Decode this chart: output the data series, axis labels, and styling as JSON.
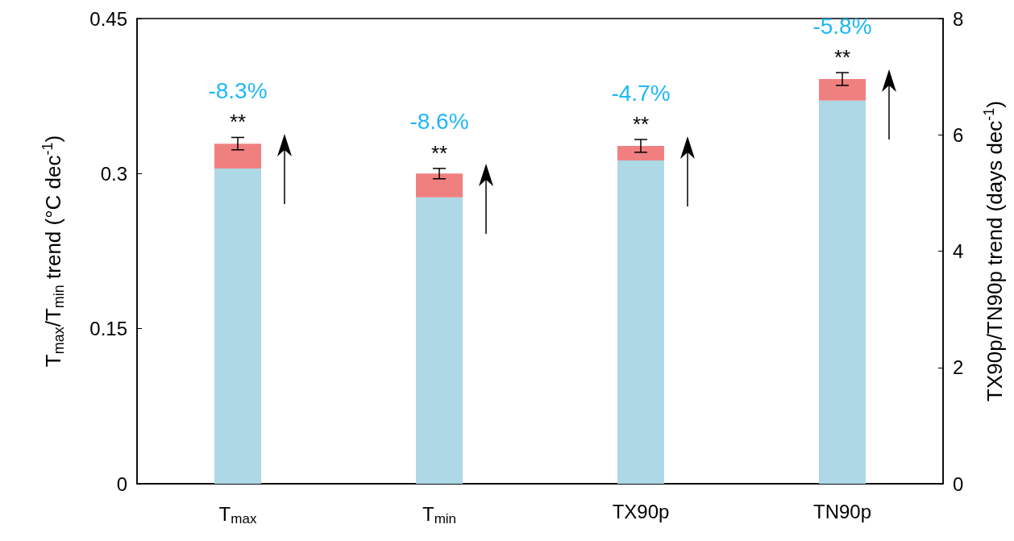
{
  "chart_data": {
    "type": "bar",
    "stacked": true,
    "categories": [
      "T$_{max}$",
      "T$_{min}$",
      "TX90p",
      "TN90p"
    ],
    "ylabel": "T$_{max}$/T$_{min}$ trend (°C dec$^{-1}$)",
    "y2label": "TX90p/TN90p trend (days dec$^{-1}$)",
    "ylim": [
      0,
      0.45
    ],
    "yticks": [
      0,
      0.15,
      0.3,
      0.45
    ],
    "y2lim": [
      0,
      8
    ],
    "y2ticks": [
      0,
      2,
      4,
      6,
      8
    ],
    "series": [
      {
        "color": "#add8e6",
        "values": [
          0.305,
          0.277,
          null,
          null
        ]
      },
      {
        "color": "#f08080",
        "values": [
          0.024,
          0.023,
          null,
          null
        ],
        "errors": [
          0.006,
          0.005,
          null,
          null
        ]
      },
      {
        "color": "#add8e6",
        "axis": "y2",
        "values": [
          null,
          null,
          5.56,
          6.59
        ]
      },
      {
        "color": "#f08080",
        "axis": "y2",
        "values": [
          null,
          null,
          0.25,
          0.37
        ],
        "errors": [
          null,
          null,
          0.11,
          0.11
        ]
      }
    ],
    "annotations": [
      "-8.3%",
      "**",
      "-8.6%",
      "**",
      "-4.7%",
      "**",
      "-5.8%",
      "**"
    ],
    "grid": false
  }
}
